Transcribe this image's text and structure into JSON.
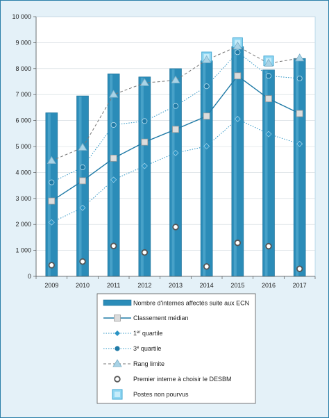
{
  "chart_data": {
    "type": "bar",
    "categories": [
      "2009",
      "2010",
      "2011",
      "2012",
      "2013",
      "2014",
      "2015",
      "2016",
      "2017"
    ],
    "ylim": [
      0,
      10000
    ],
    "yticks": [
      0,
      1000,
      2000,
      3000,
      4000,
      5000,
      6000,
      7000,
      8000,
      9000,
      10000
    ],
    "ytick_labels": [
      "0",
      "1 000",
      "2 000",
      "3 000",
      "4 000",
      "5 000",
      "6 000",
      "7 000",
      "8 000",
      "9 000",
      "10 000"
    ],
    "grid": true,
    "legend_position": "bottom",
    "colors": {
      "bar": "#2b8cb8",
      "bar_light": "#5fb3d6",
      "median": "#1f7aa6",
      "quartile": "#2a93c4",
      "limit": "#777777",
      "unfilled": "#8fd6f2",
      "background": "#e4f1f8"
    },
    "series": [
      {
        "name": "Nombre d'internes affectés suite aux ECN",
        "kind": "bar",
        "values": [
          6300,
          6950,
          7800,
          7680,
          8000,
          8300,
          8850,
          7950,
          8390
        ]
      },
      {
        "name": "Classement médian",
        "kind": "line",
        "marker": "square",
        "values": [
          2900,
          3680,
          4550,
          5170,
          5660,
          6170,
          7720,
          6840,
          6270
        ]
      },
      {
        "name_main": "1",
        "name_sup": "er",
        "name_rest": " quartile",
        "kind": "line",
        "marker": "diamond",
        "values": [
          2080,
          2640,
          3720,
          4250,
          4750,
          5010,
          6060,
          5480,
          5100
        ]
      },
      {
        "name_main": "3",
        "name_sup": "e",
        "name_rest": " quartile",
        "kind": "line",
        "marker": "circle",
        "values": [
          3620,
          4200,
          5830,
          5980,
          6560,
          7320,
          8630,
          7720,
          7620
        ]
      },
      {
        "name": "Rang limite",
        "kind": "line",
        "marker": "triangle",
        "values": [
          4450,
          4960,
          7000,
          7450,
          7550,
          8330,
          8860,
          8200,
          8400
        ]
      },
      {
        "name": "Premier interne à choisir le DESBM",
        "kind": "scatter",
        "marker": "ring",
        "values": [
          430,
          570,
          1170,
          920,
          1900,
          380,
          1290,
          1160,
          290
        ]
      },
      {
        "name": "Postes non pourvus",
        "kind": "marker",
        "marker": "box",
        "values": [
          null,
          null,
          null,
          null,
          null,
          8450,
          9000,
          8300,
          null
        ]
      }
    ]
  }
}
